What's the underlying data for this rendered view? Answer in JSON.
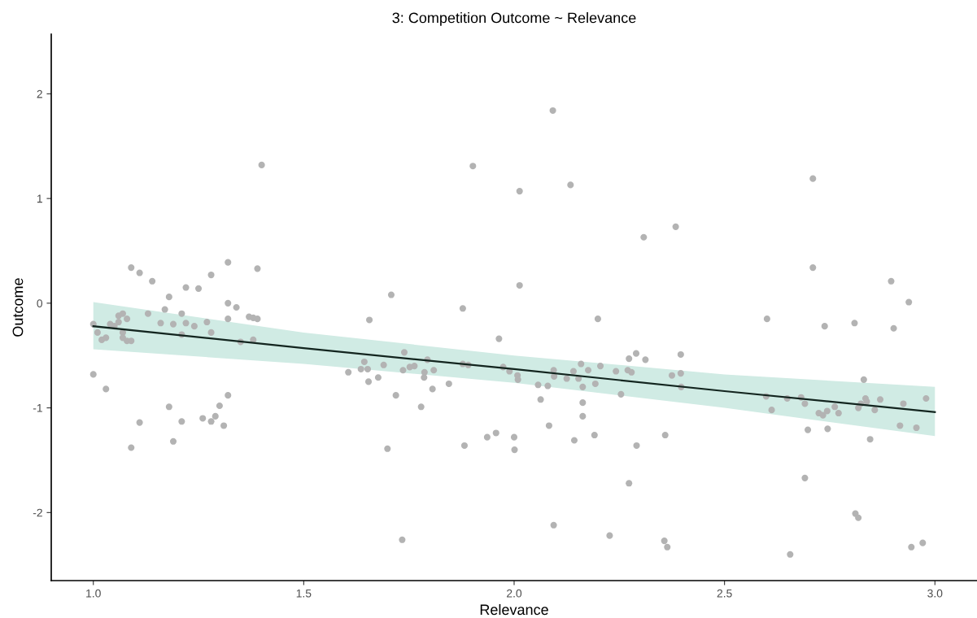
{
  "chart_data": {
    "type": "scatter",
    "title": "3: Competition Outcome ~ Relevance",
    "xlabel": "Relevance",
    "ylabel": "Outcome",
    "xlim": [
      0.9,
      3.1
    ],
    "ylim": [
      -2.65,
      2.57
    ],
    "xticks": [
      {
        "value": 1,
        "label": "1.0"
      },
      {
        "value": 1.5,
        "label": "1.5"
      },
      {
        "value": 2,
        "label": "2.0"
      },
      {
        "value": 2.5,
        "label": "2.5"
      },
      {
        "value": 3,
        "label": "3.0"
      }
    ],
    "yticks": [
      -2,
      -1,
      0,
      1,
      2
    ],
    "grid": false,
    "series": [
      {
        "marker": "circle",
        "color": "#b3b3b3",
        "x": [
          1.0,
          1.01,
          1.0,
          1.02,
          1.03,
          1.03,
          1.04,
          1.05,
          1.06,
          1.06,
          1.07,
          1.07,
          1.07,
          1.08,
          1.08,
          1.09,
          1.09,
          1.09,
          1.11,
          1.11,
          1.13,
          1.14,
          1.16,
          1.17,
          1.18,
          1.18,
          1.19,
          1.19,
          1.21,
          1.21,
          1.21,
          1.22,
          1.22,
          1.24,
          1.25,
          1.26,
          1.27,
          1.28,
          1.28,
          1.28,
          1.29,
          1.3,
          1.31,
          1.32,
          1.32,
          1.32,
          1.32,
          1.34,
          1.35,
          1.37,
          1.38,
          1.38,
          1.39,
          1.39,
          1.4,
          1.606,
          1.636,
          1.644,
          1.652,
          1.654,
          1.656,
          1.677,
          1.69,
          1.699,
          1.708,
          1.719,
          1.736,
          1.739,
          1.752,
          1.763,
          1.779,
          1.786,
          1.787,
          1.794,
          1.806,
          1.809,
          1.845,
          1.878,
          1.878,
          1.882,
          1.891,
          1.936,
          1.957,
          1.964,
          1.974,
          1.989,
          2.0,
          2.001,
          2.008,
          2.009,
          2.013,
          2.057,
          2.063,
          2.08,
          2.083,
          2.094,
          2.095,
          2.125,
          2.141,
          2.143,
          2.153,
          2.159,
          2.163,
          2.163,
          2.163,
          2.176,
          2.191,
          2.193,
          2.199,
          2.205,
          2.242,
          2.254,
          2.27,
          2.273,
          2.279,
          2.29,
          2.291,
          2.312,
          2.092,
          2.013,
          1.902,
          2.134,
          2.094,
          1.734,
          2.227,
          2.308,
          2.396,
          2.375,
          2.396,
          2.397,
          2.359,
          2.601,
          2.599,
          2.612,
          2.649,
          2.682,
          2.691,
          2.698,
          2.71,
          2.738,
          2.724,
          2.734,
          2.744,
          2.745,
          2.762,
          2.771,
          2.809,
          2.818,
          2.824,
          2.831,
          2.835,
          2.838,
          2.846,
          2.857,
          2.87,
          2.896,
          2.902,
          2.917,
          2.925,
          2.938,
          2.956,
          2.979,
          2.71,
          2.691,
          2.811,
          2.818,
          2.273,
          2.384,
          2.357,
          2.364,
          2.656,
          2.944,
          2.971
        ],
        "values": [
          -0.2,
          -0.28,
          -0.68,
          -0.35,
          -0.82,
          -0.33,
          -0.2,
          -0.22,
          -0.12,
          -0.18,
          -0.1,
          -0.28,
          -0.33,
          -0.36,
          -0.15,
          -0.36,
          0.34,
          -1.38,
          0.29,
          -1.14,
          -0.1,
          0.21,
          -0.19,
          -0.06,
          0.06,
          -0.99,
          -1.32,
          -0.2,
          -0.1,
          -0.3,
          -1.13,
          0.15,
          -0.19,
          -0.22,
          0.14,
          -1.1,
          -0.18,
          -0.28,
          0.27,
          -1.13,
          -1.08,
          -0.98,
          -1.17,
          0.39,
          0.0,
          -0.15,
          -0.88,
          -0.04,
          -0.37,
          -0.13,
          -0.14,
          -0.35,
          0.33,
          -0.15,
          1.32,
          -0.66,
          -0.63,
          -0.56,
          -0.63,
          -0.75,
          -0.16,
          -0.71,
          -0.59,
          -1.39,
          0.08,
          -0.88,
          -0.64,
          -0.47,
          -0.61,
          -0.6,
          -0.99,
          -0.71,
          -0.66,
          -0.54,
          -0.82,
          -0.64,
          -0.77,
          -0.05,
          -0.58,
          -1.36,
          -0.59,
          -1.28,
          -1.24,
          -0.34,
          -0.61,
          -0.65,
          -1.28,
          -1.4,
          -0.69,
          -0.73,
          0.17,
          -0.78,
          -0.92,
          -0.79,
          -1.17,
          -0.64,
          -0.7,
          -0.72,
          -0.65,
          -1.31,
          -0.72,
          -0.58,
          -0.8,
          -0.95,
          -1.08,
          -0.64,
          -1.26,
          -0.77,
          -0.15,
          -0.6,
          -0.65,
          -0.87,
          -0.64,
          -0.53,
          -0.66,
          -0.48,
          -1.36,
          -0.54,
          1.84,
          1.07,
          1.31,
          1.13,
          -2.12,
          -2.26,
          -2.22,
          0.63,
          -0.49,
          -0.69,
          -0.67,
          -0.8,
          -1.26,
          -0.15,
          -0.89,
          -1.02,
          -0.91,
          -0.9,
          -0.96,
          -1.21,
          0.34,
          -0.22,
          -1.05,
          -1.07,
          -1.03,
          -1.2,
          -0.99,
          -1.05,
          -0.19,
          -1.0,
          -0.96,
          -0.73,
          -0.91,
          -0.94,
          -1.3,
          -1.02,
          -0.92,
          0.21,
          -0.24,
          -1.17,
          -0.96,
          0.01,
          -1.19,
          -0.91,
          1.19,
          -1.67,
          -2.01,
          -2.05,
          -1.72,
          0.73,
          -2.27,
          -2.33,
          -2.4,
          -2.33,
          -2.29
        ]
      },
      {
        "type": "line",
        "color": "#13251f",
        "x": [
          1.0,
          1.5,
          2.0,
          2.5,
          3.0
        ],
        "values": [
          -0.22,
          -0.43,
          -0.63,
          -0.84,
          -1.04
        ],
        "lower": [
          -0.44,
          -0.58,
          -0.76,
          -1.0,
          -1.27
        ],
        "upper": [
          0.01,
          -0.28,
          -0.5,
          -0.68,
          -0.8
        ]
      }
    ]
  }
}
